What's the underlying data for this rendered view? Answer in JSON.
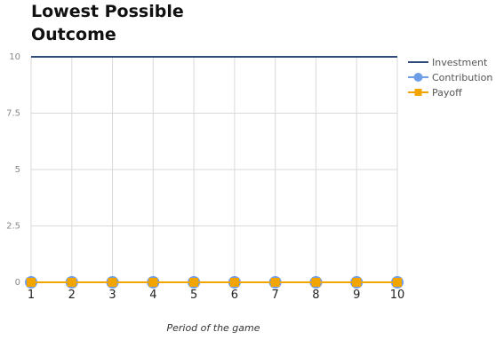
{
  "chart_data": {
    "type": "line",
    "title_lines": [
      "Lowest Possible",
      "Outcome"
    ],
    "xlabel": "Period of the game",
    "ylabel": "",
    "x": [
      1,
      2,
      3,
      4,
      5,
      6,
      7,
      8,
      9,
      10
    ],
    "xlim": [
      1,
      10
    ],
    "ylim": [
      0,
      10
    ],
    "yticks": [
      "0",
      "2.5",
      "5",
      "7.5",
      "10"
    ],
    "ytick_values": [
      0,
      2.5,
      5,
      7.5,
      10
    ],
    "grid": true,
    "legend_position": "right",
    "series": [
      {
        "name": "Investment",
        "values": [
          10,
          10,
          10,
          10,
          10,
          10,
          10,
          10,
          10,
          10
        ],
        "color": "#2f4b7c",
        "marker": "none"
      },
      {
        "name": "Contribution",
        "values": [
          0,
          0,
          0,
          0,
          0,
          0,
          0,
          0,
          0,
          0
        ],
        "color": "#6f9ee8",
        "marker": "circle"
      },
      {
        "name": "Payoff",
        "values": [
          0,
          0,
          0,
          0,
          0,
          0,
          0,
          0,
          0,
          0
        ],
        "color": "#f2a500",
        "marker": "square"
      }
    ]
  }
}
